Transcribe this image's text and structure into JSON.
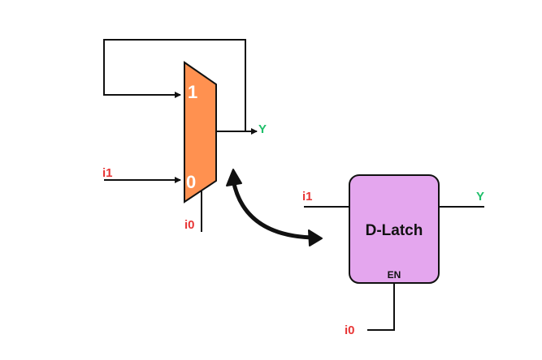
{
  "mux": {
    "input1_label": "1",
    "input0_label": "0",
    "data_input_label": "i1",
    "select_input_label": "i0",
    "output_label": "Y",
    "fill_color": "#ff9150"
  },
  "latch": {
    "title": "D-Latch",
    "d_input_label": "i1",
    "enable_label": "EN",
    "enable_input_label": "i0",
    "output_label": "Y",
    "fill_color": "#e4a6ee"
  },
  "colors": {
    "input_label": "#e83535",
    "output_label": "#1fbf6a",
    "wire": "#111111"
  },
  "connector": "double-headed curved arrow linking the mux to the D-latch"
}
